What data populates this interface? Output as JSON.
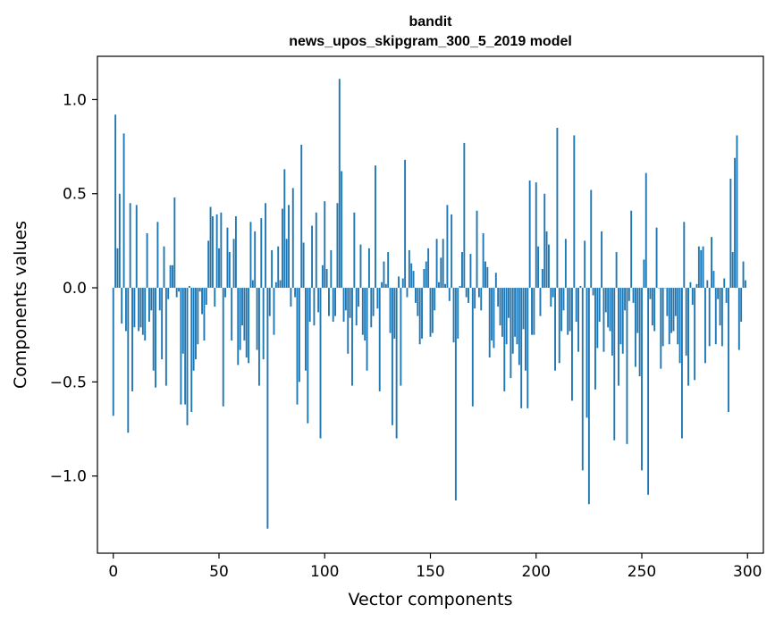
{
  "chart_data": {
    "type": "bar",
    "title": "bandit",
    "subtitle": "news_upos_skipgram_300_5_2019 model",
    "xlabel": "Vector components",
    "ylabel": "Components values",
    "xlim": [
      -7.5,
      307.5
    ],
    "ylim": [
      -1.41,
      1.23
    ],
    "x_ticks": [
      0,
      50,
      100,
      150,
      200,
      250,
      300
    ],
    "x_tick_labels": [
      "0",
      "50",
      "100",
      "150",
      "200",
      "250",
      "300"
    ],
    "y_ticks": [
      1.0,
      0.5,
      0.0,
      -0.5,
      -1.0
    ],
    "y_tick_labels": [
      "1.0",
      "0.5",
      "0.0",
      "−0.5",
      "−1.0"
    ],
    "bar_color": "#1f77b4",
    "values": [
      -0.68,
      0.92,
      0.21,
      0.5,
      -0.19,
      0.82,
      -0.23,
      -0.77,
      0.45,
      -0.55,
      -0.21,
      0.44,
      -0.23,
      -0.21,
      -0.25,
      -0.28,
      0.29,
      -0.18,
      -0.12,
      -0.44,
      -0.53,
      0.35,
      -0.12,
      -0.38,
      0.22,
      -0.52,
      -0.06,
      0.12,
      0.12,
      0.48,
      -0.05,
      -0.02,
      -0.62,
      -0.35,
      -0.62,
      -0.73,
      0.01,
      -0.66,
      -0.44,
      -0.38,
      -0.3,
      -0.02,
      -0.14,
      -0.28,
      -0.09,
      0.25,
      0.43,
      0.38,
      -0.1,
      0.39,
      0.21,
      0.4,
      -0.63,
      -0.05,
      0.32,
      0.19,
      -0.28,
      0.26,
      0.38,
      -0.41,
      -0.33,
      -0.2,
      -0.28,
      -0.37,
      -0.4,
      0.35,
      0.04,
      0.3,
      -0.33,
      -0.52,
      0.37,
      -0.38,
      0.45,
      -1.28,
      -0.15,
      0.2,
      -0.25,
      0.03,
      0.22,
      0.04,
      0.42,
      0.63,
      0.26,
      0.44,
      -0.1,
      0.53,
      -0.05,
      -0.62,
      -0.5,
      0.76,
      0.24,
      -0.44,
      -0.72,
      -0.18,
      0.33,
      -0.2,
      0.4,
      -0.13,
      -0.8,
      0.12,
      0.46,
      0.1,
      -0.15,
      0.2,
      -0.18,
      -0.15,
      0.45,
      1.11,
      0.62,
      -0.18,
      -0.12,
      -0.35,
      -0.16,
      -0.52,
      0.4,
      -0.2,
      -0.1,
      0.23,
      -0.25,
      -0.28,
      -0.44,
      0.21,
      -0.21,
      -0.15,
      0.65,
      -0.11,
      -0.55,
      0.03,
      0.14,
      0.02,
      0.19,
      -0.24,
      -0.73,
      -0.27,
      -0.8,
      0.06,
      -0.52,
      0.05,
      0.68,
      -0.05,
      0.2,
      0.13,
      0.09,
      -0.08,
      -0.15,
      -0.3,
      -0.27,
      0.1,
      0.14,
      0.21,
      -0.26,
      -0.24,
      -0.12,
      0.26,
      0.03,
      0.16,
      0.26,
      0.02,
      0.44,
      -0.07,
      0.39,
      -0.29,
      -1.13,
      -0.27,
      0.01,
      0.19,
      0.77,
      -0.05,
      -0.08,
      0.18,
      -0.63,
      -0.11,
      0.41,
      -0.05,
      -0.12,
      0.29,
      0.14,
      0.11,
      -0.37,
      -0.28,
      -0.32,
      0.08,
      -0.1,
      -0.2,
      -0.26,
      -0.55,
      -0.3,
      -0.16,
      -0.48,
      -0.35,
      -0.26,
      -0.3,
      -0.41,
      -0.64,
      -0.22,
      -0.44,
      -0.64,
      0.57,
      -0.25,
      -0.25,
      0.56,
      0.22,
      -0.15,
      0.1,
      0.5,
      0.3,
      0.23,
      -0.1,
      -0.05,
      -0.44,
      0.85,
      -0.4,
      -0.23,
      -0.12,
      0.26,
      -0.25,
      -0.23,
      -0.6,
      0.81,
      -0.18,
      -0.34,
      0.01,
      -0.97,
      0.25,
      -0.69,
      -1.15,
      0.52,
      -0.04,
      -0.54,
      -0.32,
      -0.18,
      0.3,
      -0.34,
      -0.13,
      -0.21,
      -0.23,
      -0.36,
      -0.81,
      0.19,
      -0.52,
      -0.3,
      -0.35,
      -0.12,
      -0.83,
      -0.07,
      0.41,
      -0.08,
      -0.42,
      -0.24,
      -0.47,
      -0.97,
      0.15,
      0.61,
      -1.1,
      -0.06,
      -0.2,
      -0.23,
      0.32,
      0.0,
      -0.43,
      -0.31,
      0.0,
      -0.15,
      -0.3,
      -0.24,
      -0.23,
      -0.15,
      -0.3,
      -0.4,
      -0.8,
      0.35,
      -0.36,
      -0.52,
      0.03,
      -0.09,
      -0.49,
      0.02,
      0.22,
      0.2,
      0.22,
      -0.4,
      0.04,
      -0.31,
      0.27,
      0.09,
      -0.3,
      -0.06,
      -0.2,
      -0.31,
      0.05,
      -0.08,
      -0.66,
      0.58,
      0.19,
      0.69,
      0.81,
      -0.33,
      -0.18,
      0.14,
      0.04
    ]
  }
}
